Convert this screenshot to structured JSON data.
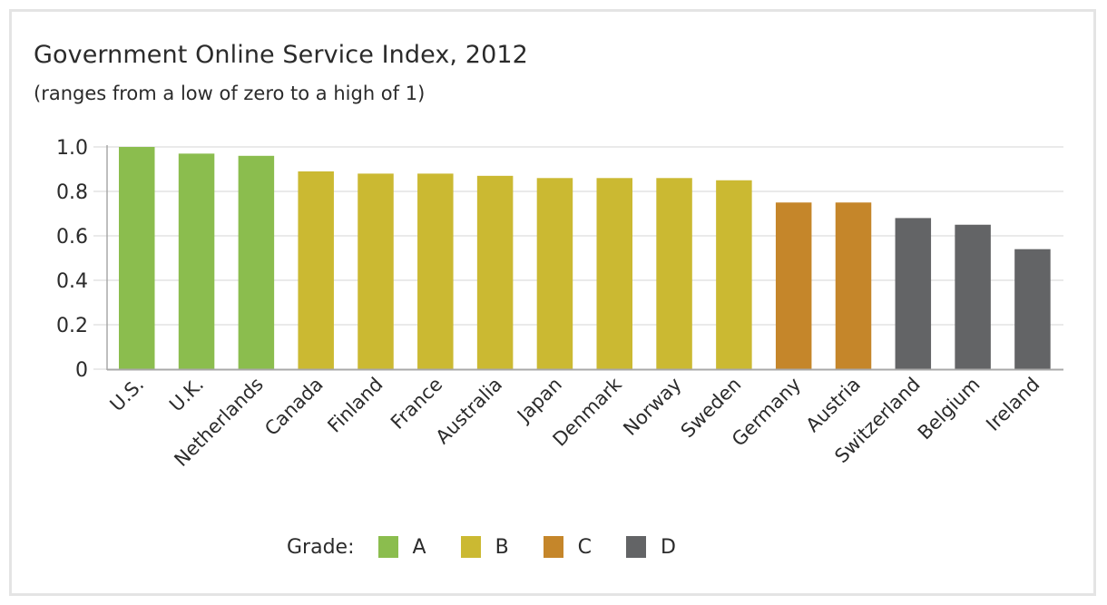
{
  "title": "Government Online Service Index, 2012",
  "subtitle": "(ranges from a low of zero to a high of 1)",
  "legend": {
    "label": "Grade:",
    "items": [
      {
        "grade": "A",
        "color": "#8bbd4e"
      },
      {
        "grade": "B",
        "color": "#cbb932"
      },
      {
        "grade": "C",
        "color": "#c5862a"
      },
      {
        "grade": "D",
        "color": "#636466"
      }
    ]
  },
  "chart_data": {
    "type": "bar",
    "title": "Government Online Service Index, 2012",
    "subtitle": "(ranges from a low of zero to a high of 1)",
    "xlabel": "",
    "ylabel": "",
    "ylim": [
      0,
      1.0
    ],
    "yticks": [
      "0",
      "0.2",
      "0.4",
      "0.6",
      "0.8",
      "1.0"
    ],
    "grid": true,
    "legend_position": "bottom",
    "categories": [
      "U.S.",
      "U.K.",
      "Netherlands",
      "Canada",
      "Finland",
      "France",
      "Australia",
      "Japan",
      "Denmark",
      "Norway",
      "Sweden",
      "Germany",
      "Austria",
      "Switzerland",
      "Belgium",
      "Ireland"
    ],
    "values": [
      1.0,
      0.97,
      0.96,
      0.89,
      0.88,
      0.88,
      0.87,
      0.86,
      0.86,
      0.86,
      0.85,
      0.75,
      0.75,
      0.68,
      0.65,
      0.54
    ],
    "grades": [
      "A",
      "A",
      "A",
      "B",
      "B",
      "B",
      "B",
      "B",
      "B",
      "B",
      "B",
      "C",
      "C",
      "D",
      "D",
      "D"
    ],
    "grade_colors": {
      "A": "#8bbd4e",
      "B": "#cbb932",
      "C": "#c5862a",
      "D": "#636466"
    }
  }
}
